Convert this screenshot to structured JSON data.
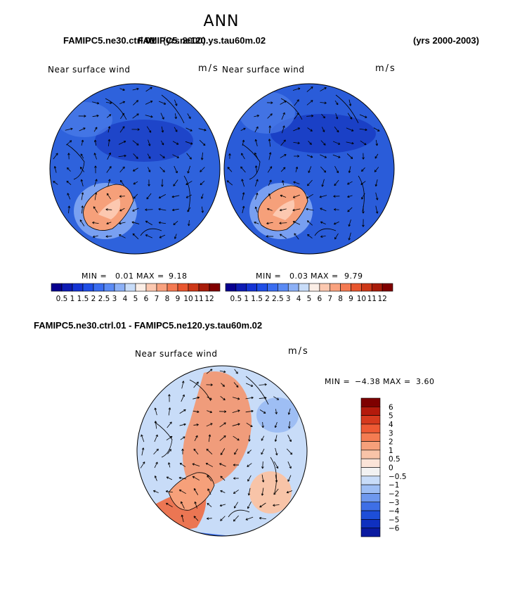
{
  "header": {
    "title": "ANN",
    "subtitle_overlap_1": "FAMIPC5.ne30.ctrl.01",
    "subtitle_overlap_2": "FAMIPC5.ne120.ys.tau60m.02",
    "subtitle_overlap_3": "(yrs 2000)",
    "years": "(yrs 2000-2003)"
  },
  "colors": {
    "bg_blue": "#1f5fd8",
    "land_red": "#f5b49a",
    "coast": "#000000"
  },
  "chart_data": [
    {
      "type": "heatmap",
      "title": "Near surface wind",
      "units": "m/s",
      "min_label": "MIN =",
      "min_value": "0.01",
      "max_label": "MAX =",
      "max_value": "9.18",
      "colorbar": {
        "levels": [
          "0.5",
          "1",
          "1.5",
          "2",
          "2.5",
          "3",
          "4",
          "5",
          "6",
          "7",
          "8",
          "9",
          "10",
          "11",
          "12"
        ],
        "colors": [
          "#08008f",
          "#0e1cb4",
          "#1534d4",
          "#1f4ee6",
          "#3a6cf0",
          "#5a8af4",
          "#8cb0f6",
          "#c8dcf8",
          "#fbeee6",
          "#fcc8b0",
          "#f9a27f",
          "#f47a52",
          "#e8562f",
          "#cd3818",
          "#a81c0a",
          "#800000"
        ]
      }
    },
    {
      "type": "heatmap",
      "title": "Near surface wind",
      "units": "m/s",
      "min_label": "MIN =",
      "min_value": "0.03",
      "max_label": "MAX =",
      "max_value": "9.79",
      "colorbar": {
        "levels": [
          "0.5",
          "1",
          "1.5",
          "2",
          "2.5",
          "3",
          "4",
          "5",
          "6",
          "7",
          "8",
          "9",
          "10",
          "11",
          "12"
        ],
        "colors": [
          "#08008f",
          "#0e1cb4",
          "#1534d4",
          "#1f4ee6",
          "#3a6cf0",
          "#5a8af4",
          "#8cb0f6",
          "#c8dcf8",
          "#fbeee6",
          "#fcc8b0",
          "#f9a27f",
          "#f47a52",
          "#e8562f",
          "#cd3818",
          "#a81c0a",
          "#800000"
        ]
      }
    },
    {
      "type": "heatmap",
      "subtitle": "FAMIPC5.ne30.ctrl.01 - FAMIPC5.ne120.ys.tau60m.02",
      "title": "Near surface wind",
      "units": "m/s",
      "min_label": "MIN =",
      "min_value": "−4.38",
      "max_label": "MAX =",
      "max_value": "3.60",
      "colorbar": {
        "levels": [
          "6",
          "5",
          "4",
          "3",
          "2",
          "1",
          "0.5",
          "0",
          "−0.5",
          "−1",
          "−2",
          "−3",
          "−4",
          "−5",
          "−6"
        ],
        "colors": [
          "#7e0000",
          "#b41a0c",
          "#d63a1e",
          "#ee5a34",
          "#f47c52",
          "#f6a07a",
          "#f8c4a8",
          "#fbe4d8",
          "#f2f2f2",
          "#c8dcf8",
          "#9ebef4",
          "#6e98ee",
          "#3e6fe6",
          "#1d4ed8",
          "#0f30bf",
          "#0a1aa0"
        ]
      }
    }
  ]
}
